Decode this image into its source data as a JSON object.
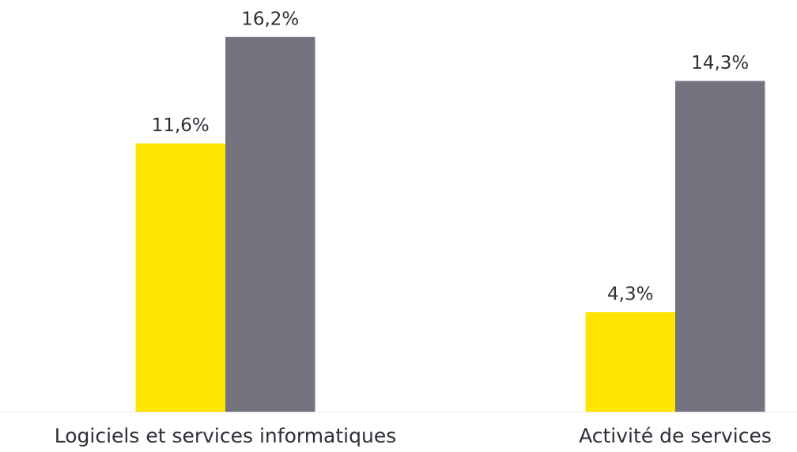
{
  "chart_data": {
    "type": "bar",
    "categories": [
      "Logiciels et services informatiques",
      "Activité de services"
    ],
    "series": [
      {
        "color": "#ffe600",
        "values": [
          11.6,
          4.3
        ],
        "value_labels": [
          "11,6%",
          "4,3%"
        ]
      },
      {
        "color": "#747480",
        "values": [
          16.2,
          14.3
        ],
        "value_labels": [
          "16,2%",
          "14,3%"
        ]
      }
    ]
  }
}
